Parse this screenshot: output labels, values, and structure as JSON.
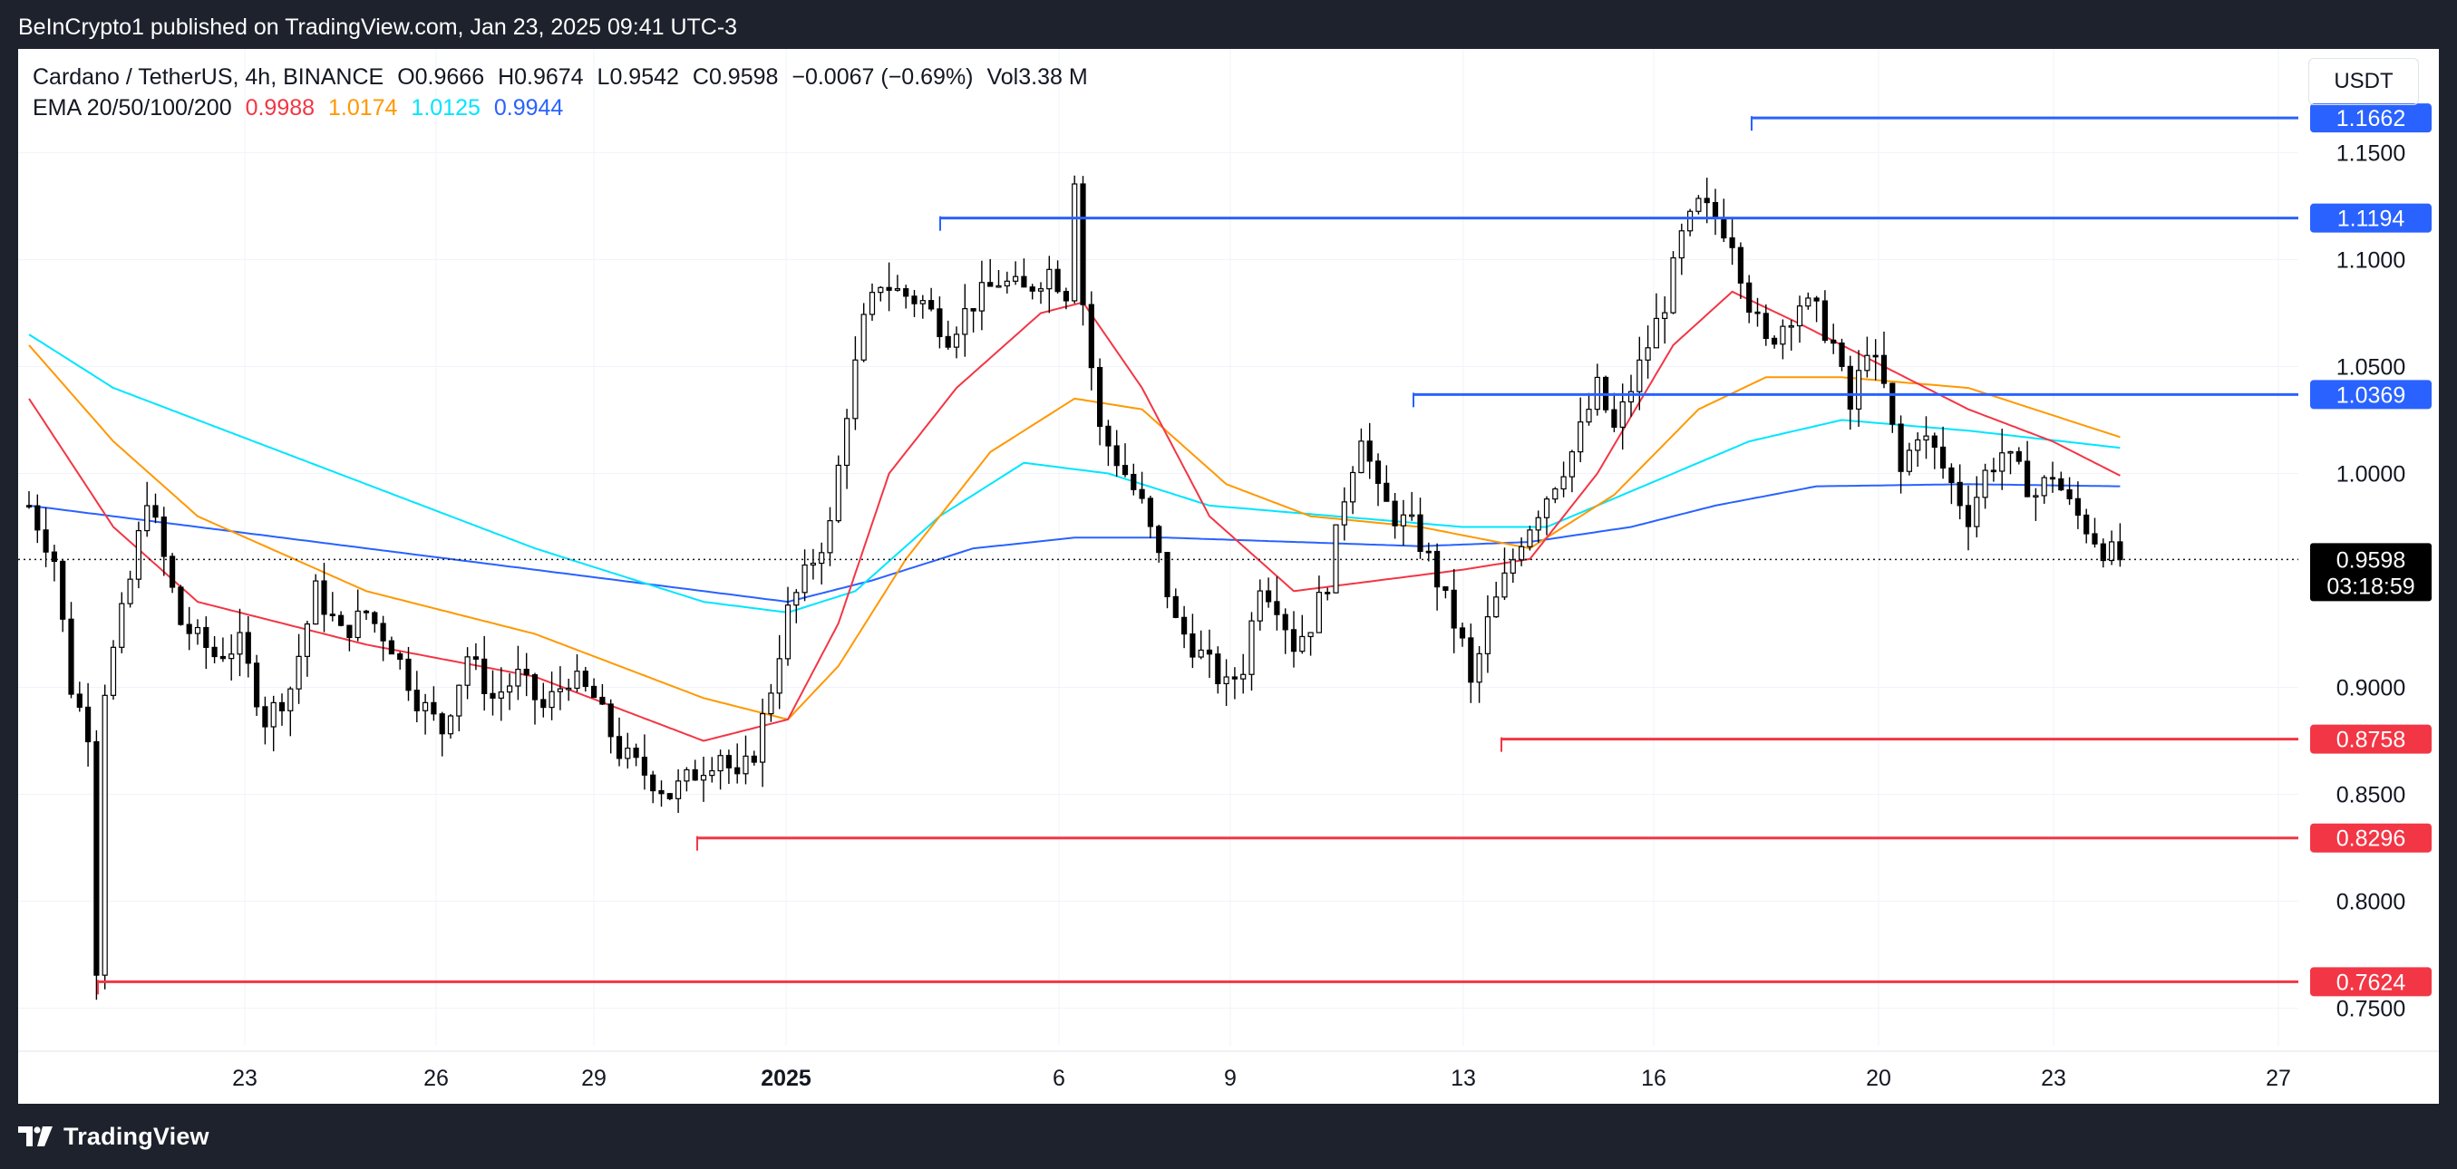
{
  "header": {
    "published": "BeInCrypto1 published on TradingView.com, Jan 23, 2025 09:41 UTC-3"
  },
  "footer": {
    "brand": "TradingView"
  },
  "legend": {
    "symbol": "Cardano / TetherUS, 4h, BINANCE",
    "open_label": "O",
    "open": "0.9666",
    "high_label": "H",
    "high": "0.9674",
    "low_label": "L",
    "low": "0.9542",
    "close_label": "C",
    "close": "0.9598",
    "change": "−0.0067 (−0.69%)",
    "volume_label": "Vol",
    "volume": "3.38 M",
    "ema_label": "EMA 20/50/100/200",
    "ema_values": [
      {
        "value": "0.9988",
        "color": "#f23645"
      },
      {
        "value": "1.0174",
        "color": "#ff9800"
      },
      {
        "value": "1.0125",
        "color": "#00e5ff"
      },
      {
        "value": "0.9944",
        "color": "#2962ff"
      }
    ]
  },
  "currency_button": "USDT",
  "colors": {
    "background": "#ffffff",
    "frame": "#1e222d",
    "candle": "#000000",
    "resistance": "#2962ff",
    "support": "#f23645",
    "ema20": "#f23645",
    "ema50": "#ff9800",
    "ema100": "#00e5ff",
    "ema200": "#2962ff"
  },
  "chart_data": {
    "type": "candlestick",
    "interval": "4h",
    "y_axis": {
      "range": [
        0.735,
        1.19
      ],
      "ticks": [
        "1.1500",
        "1.1000",
        "1.0500",
        "1.0000",
        "0.9000",
        "0.8500",
        "0.8000",
        "0.7500"
      ],
      "position": "right"
    },
    "x_axis": {
      "ticks": [
        {
          "label": "23",
          "bold": false
        },
        {
          "label": "26",
          "bold": false
        },
        {
          "label": "29",
          "bold": false
        },
        {
          "label": "2025",
          "bold": true
        },
        {
          "label": "6",
          "bold": false
        },
        {
          "label": "9",
          "bold": false
        },
        {
          "label": "13",
          "bold": false
        },
        {
          "label": "16",
          "bold": false
        },
        {
          "label": "20",
          "bold": false
        },
        {
          "label": "23",
          "bold": false
        },
        {
          "label": "27",
          "bold": false
        }
      ]
    },
    "last_price": {
      "value": "0.9598",
      "countdown": "03:18:59"
    },
    "resistance_levels": [
      {
        "label": "1.1662",
        "value": 1.1662
      },
      {
        "label": "1.1194",
        "value": 1.1194
      },
      {
        "label": "1.0369",
        "value": 1.0369
      }
    ],
    "support_levels": [
      {
        "label": "0.8758",
        "value": 0.8758
      },
      {
        "label": "0.8296",
        "value": 0.8296
      },
      {
        "label": "0.7624",
        "value": 0.7624
      }
    ],
    "price_path": [
      [
        0,
        0.985
      ],
      [
        3,
        0.96
      ],
      [
        5,
        0.9
      ],
      [
        7,
        0.88
      ],
      [
        8,
        0.77
      ],
      [
        9,
        0.9
      ],
      [
        12,
        0.95
      ],
      [
        14,
        0.99
      ],
      [
        18,
        0.93
      ],
      [
        22,
        0.915
      ],
      [
        25,
        0.92
      ],
      [
        28,
        0.885
      ],
      [
        31,
        0.9
      ],
      [
        34,
        0.945
      ],
      [
        37,
        0.925
      ],
      [
        40,
        0.935
      ],
      [
        43,
        0.92
      ],
      [
        46,
        0.895
      ],
      [
        49,
        0.88
      ],
      [
        52,
        0.915
      ],
      [
        55,
        0.895
      ],
      [
        58,
        0.905
      ],
      [
        61,
        0.89
      ],
      [
        64,
        0.905
      ],
      [
        67,
        0.895
      ],
      [
        70,
        0.87
      ],
      [
        73,
        0.86
      ],
      [
        76,
        0.85
      ],
      [
        79,
        0.86
      ],
      [
        82,
        0.87
      ],
      [
        84,
        0.855
      ],
      [
        86,
        0.87
      ],
      [
        88,
        0.9
      ],
      [
        90,
        0.935
      ],
      [
        93,
        0.96
      ],
      [
        95,
        0.975
      ],
      [
        97,
        1.03
      ],
      [
        99,
        1.07
      ],
      [
        101,
        1.09
      ],
      [
        103,
        1.085
      ],
      [
        106,
        1.08
      ],
      [
        109,
        1.065
      ],
      [
        112,
        1.08
      ],
      [
        115,
        1.09
      ],
      [
        118,
        1.085
      ],
      [
        121,
        1.095
      ],
      [
        123,
        1.085
      ],
      [
        124,
        1.14
      ],
      [
        125,
        1.08
      ],
      [
        127,
        1.02
      ],
      [
        130,
        1.0
      ],
      [
        132,
        0.985
      ],
      [
        134,
        0.96
      ],
      [
        136,
        0.93
      ],
      [
        138,
        0.92
      ],
      [
        140,
        0.91
      ],
      [
        142,
        0.9
      ],
      [
        144,
        0.91
      ],
      [
        146,
        0.95
      ],
      [
        148,
        0.94
      ],
      [
        150,
        0.92
      ],
      [
        152,
        0.93
      ],
      [
        154,
        0.95
      ],
      [
        156,
        0.99
      ],
      [
        158,
        1.02
      ],
      [
        160,
        0.99
      ],
      [
        162,
        0.98
      ],
      [
        164,
        0.975
      ],
      [
        166,
        0.96
      ],
      [
        168,
        0.94
      ],
      [
        170,
        0.92
      ],
      [
        171,
        0.9
      ],
      [
        173,
        0.93
      ],
      [
        175,
        0.95
      ],
      [
        177,
        0.97
      ],
      [
        180,
        0.99
      ],
      [
        183,
        1.01
      ],
      [
        186,
        1.04
      ],
      [
        188,
        1.02
      ],
      [
        190,
        1.04
      ],
      [
        192,
        1.06
      ],
      [
        194,
        1.08
      ],
      [
        196,
        1.11
      ],
      [
        198,
        1.125
      ],
      [
        200,
        1.12
      ],
      [
        202,
        1.11
      ],
      [
        204,
        1.08
      ],
      [
        206,
        1.06
      ],
      [
        208,
        1.07
      ],
      [
        210,
        1.08
      ],
      [
        212,
        1.075
      ],
      [
        214,
        1.06
      ],
      [
        216,
        1.03
      ],
      [
        218,
        1.06
      ],
      [
        220,
        1.04
      ],
      [
        222,
        1.0
      ],
      [
        224,
        1.02
      ],
      [
        226,
        1.01
      ],
      [
        228,
        0.995
      ],
      [
        230,
        0.98
      ],
      [
        232,
        1.0
      ],
      [
        234,
        1.01
      ],
      [
        236,
        1.0
      ],
      [
        238,
        0.99
      ],
      [
        240,
        1.0
      ],
      [
        242,
        0.985
      ],
      [
        244,
        0.975
      ],
      [
        246,
        0.965
      ],
      [
        248,
        0.96
      ]
    ],
    "ema20": [
      [
        0,
        1.035
      ],
      [
        10,
        0.975
      ],
      [
        20,
        0.94
      ],
      [
        40,
        0.92
      ],
      [
        60,
        0.905
      ],
      [
        80,
        0.875
      ],
      [
        90,
        0.885
      ],
      [
        96,
        0.93
      ],
      [
        102,
        1.0
      ],
      [
        110,
        1.04
      ],
      [
        120,
        1.075
      ],
      [
        125,
        1.08
      ],
      [
        132,
        1.04
      ],
      [
        140,
        0.98
      ],
      [
        150,
        0.945
      ],
      [
        160,
        0.95
      ],
      [
        170,
        0.955
      ],
      [
        178,
        0.96
      ],
      [
        186,
        1.0
      ],
      [
        195,
        1.06
      ],
      [
        202,
        1.085
      ],
      [
        210,
        1.07
      ],
      [
        220,
        1.05
      ],
      [
        230,
        1.03
      ],
      [
        240,
        1.015
      ],
      [
        248,
        0.999
      ]
    ],
    "ema50": [
      [
        0,
        1.06
      ],
      [
        10,
        1.015
      ],
      [
        20,
        0.98
      ],
      [
        40,
        0.945
      ],
      [
        60,
        0.925
      ],
      [
        80,
        0.895
      ],
      [
        90,
        0.885
      ],
      [
        96,
        0.91
      ],
      [
        104,
        0.96
      ],
      [
        114,
        1.01
      ],
      [
        124,
        1.035
      ],
      [
        132,
        1.03
      ],
      [
        142,
        0.995
      ],
      [
        152,
        0.98
      ],
      [
        165,
        0.975
      ],
      [
        178,
        0.965
      ],
      [
        188,
        0.99
      ],
      [
        198,
        1.03
      ],
      [
        206,
        1.045
      ],
      [
        215,
        1.045
      ],
      [
        230,
        1.04
      ],
      [
        248,
        1.017
      ]
    ],
    "ema100": [
      [
        0,
        1.065
      ],
      [
        10,
        1.04
      ],
      [
        20,
        1.025
      ],
      [
        40,
        0.995
      ],
      [
        60,
        0.965
      ],
      [
        80,
        0.94
      ],
      [
        90,
        0.935
      ],
      [
        98,
        0.945
      ],
      [
        108,
        0.98
      ],
      [
        118,
        1.005
      ],
      [
        128,
        1.0
      ],
      [
        140,
        0.985
      ],
      [
        155,
        0.98
      ],
      [
        170,
        0.975
      ],
      [
        180,
        0.975
      ],
      [
        192,
        0.995
      ],
      [
        204,
        1.015
      ],
      [
        215,
        1.025
      ],
      [
        230,
        1.02
      ],
      [
        248,
        1.012
      ]
    ],
    "ema200": [
      [
        0,
        0.985
      ],
      [
        20,
        0.975
      ],
      [
        40,
        0.965
      ],
      [
        60,
        0.955
      ],
      [
        80,
        0.945
      ],
      [
        90,
        0.94
      ],
      [
        100,
        0.95
      ],
      [
        112,
        0.965
      ],
      [
        124,
        0.97
      ],
      [
        135,
        0.97
      ],
      [
        150,
        0.968
      ],
      [
        165,
        0.966
      ],
      [
        178,
        0.968
      ],
      [
        190,
        0.975
      ],
      [
        200,
        0.985
      ],
      [
        212,
        0.994
      ],
      [
        230,
        0.995
      ],
      [
        248,
        0.994
      ]
    ]
  }
}
